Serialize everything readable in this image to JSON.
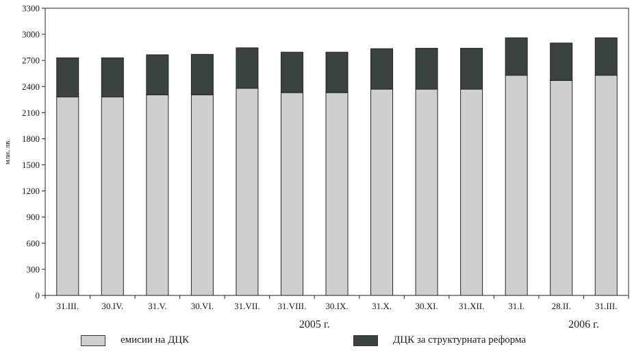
{
  "chart_data": {
    "type": "bar",
    "stacked": true,
    "categories": [
      "31.III.",
      "30.IV.",
      "31.V.",
      "30.VI.",
      "31.VII.",
      "31.VIII.",
      "30.IX.",
      "31.X.",
      "30.XI.",
      "31.XII.",
      "31.I.",
      "28.II.",
      "31.III."
    ],
    "year_labels": [
      {
        "label": "2005 г.",
        "from_category": 0,
        "to_category": 9
      },
      {
        "label": "2006 г.",
        "from_category": 10,
        "to_category": 12
      }
    ],
    "series": [
      {
        "name": "емисии на ДЦК",
        "color": "#cfcfcf",
        "values": [
          2280,
          2280,
          2305,
          2305,
          2380,
          2330,
          2330,
          2370,
          2370,
          2370,
          2530,
          2470,
          2530
        ]
      },
      {
        "name": "ДЦК за структурната реформа",
        "color": "#3b4240",
        "values": [
          450,
          450,
          460,
          465,
          465,
          465,
          465,
          465,
          470,
          470,
          430,
          430,
          430
        ]
      }
    ],
    "ylabel": "млн. лв.",
    "ylim": [
      0,
      3300
    ],
    "yticks": [
      0,
      300,
      600,
      900,
      1200,
      1500,
      1800,
      2100,
      2400,
      2700,
      3000,
      3300
    ],
    "grid": false,
    "legend_position": "bottom"
  }
}
